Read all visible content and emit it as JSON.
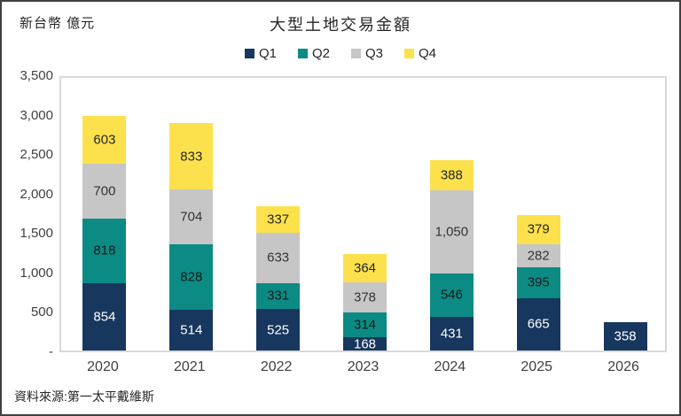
{
  "header": {
    "unit_label": "新台幣 億元",
    "title": "大型土地交易金額"
  },
  "footer": {
    "source": "資料來源:第一太平戴維斯"
  },
  "colors": {
    "q1": "#17375E",
    "q2": "#0B8B84",
    "q3": "#C6C6C6",
    "q4": "#FCE14D",
    "axis_text": "#404040",
    "plot_border": "#D9D9D9"
  },
  "chart_data": {
    "type": "bar",
    "stacked": true,
    "title": "大型土地交易金額",
    "ylabel": "新台幣 億元",
    "source": "資料來源:第一太平戴維斯",
    "categories": [
      "2020",
      "2021",
      "2022",
      "2023",
      "2024",
      "2025",
      "2026"
    ],
    "series": [
      {
        "name": "Q1",
        "color": "#17375E",
        "label_color": "#FFFFFF",
        "values": [
          854,
          514,
          525,
          168,
          431,
          665,
          358
        ]
      },
      {
        "name": "Q2",
        "color": "#0B8B84",
        "label_color": "#1A1A1A",
        "values": [
          818,
          828,
          331,
          314,
          546,
          395,
          null
        ]
      },
      {
        "name": "Q3",
        "color": "#C6C6C6",
        "label_color": "#333333",
        "values": [
          700,
          704,
          633,
          378,
          1050,
          282,
          null
        ]
      },
      {
        "name": "Q4",
        "color": "#FCE14D",
        "label_color": "#262626",
        "values": [
          603,
          833,
          337,
          364,
          388,
          379,
          null
        ]
      }
    ],
    "ylim": [
      0,
      3500
    ],
    "ytick_step": 500,
    "ytick_labels": [
      "3,500",
      "3,000",
      "2,500",
      "2,000",
      "1,500",
      "1,000",
      "500",
      "-"
    ],
    "legend_position": "top",
    "grid": false
  }
}
